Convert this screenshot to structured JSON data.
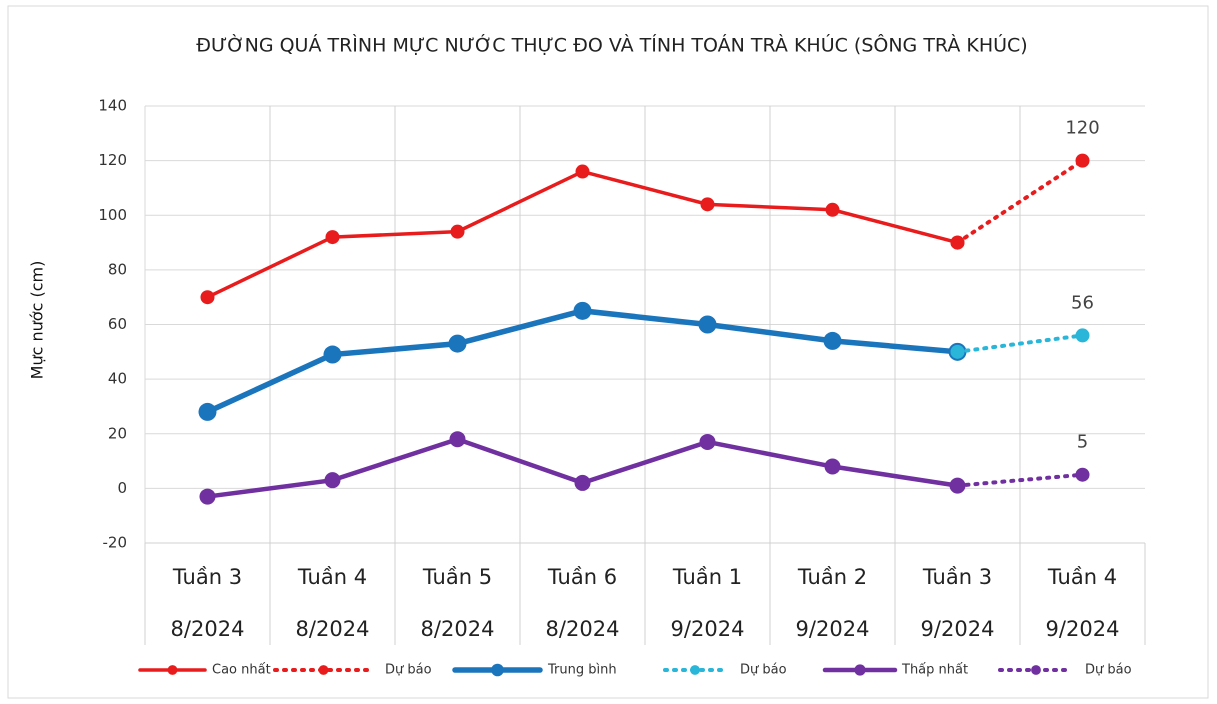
{
  "chart_data": {
    "type": "line",
    "title": "ĐƯỜNG QUÁ TRÌNH MỰC NƯỚC THỰC ĐO VÀ TÍNH TOÁN TRÀ KHÚC (SÔNG TRÀ KHÚC)",
    "y_label": "Mực nước (cm)",
    "categories": [
      [
        "Tuần 3",
        "8/2024"
      ],
      [
        "Tuần 4",
        "8/2024"
      ],
      [
        "Tuần 5",
        "8/2024"
      ],
      [
        "Tuần 6",
        "8/2024"
      ],
      [
        "Tuần 1",
        "9/2024"
      ],
      [
        "Tuần 2",
        "9/2024"
      ],
      [
        "Tuần 3",
        "9/2024"
      ],
      [
        "Tuần 4",
        "9/2024"
      ]
    ],
    "series": [
      {
        "name": "Cao nhất",
        "color": "#e81c1c",
        "dashed": false,
        "values": [
          70,
          92,
          94,
          116,
          104,
          102,
          90,
          null
        ]
      },
      {
        "name": "Dự báo",
        "color": "#e81c1c",
        "dashed": true,
        "values": [
          null,
          null,
          null,
          null,
          null,
          null,
          90,
          120
        ]
      },
      {
        "name": "Trung bình",
        "color": "#1b75bc",
        "dashed": false,
        "values": [
          28,
          49,
          53,
          65,
          60,
          54,
          50,
          null
        ]
      },
      {
        "name": "Dự báo",
        "color": "#29b6d8",
        "dashed": true,
        "values": [
          null,
          null,
          null,
          null,
          null,
          null,
          50,
          56
        ]
      },
      {
        "name": "Thấp nhất",
        "color": "#7030a0",
        "dashed": false,
        "values": [
          -3,
          3,
          18,
          2,
          17,
          8,
          1,
          null
        ]
      },
      {
        "name": "Dự báo",
        "color": "#7030a0",
        "dashed": true,
        "values": [
          null,
          null,
          null,
          null,
          null,
          null,
          1,
          5
        ]
      }
    ],
    "ylim": [
      -20,
      140
    ],
    "yticks": [
      -20,
      0,
      20,
      40,
      60,
      80,
      100,
      120,
      140
    ],
    "grid": true
  }
}
